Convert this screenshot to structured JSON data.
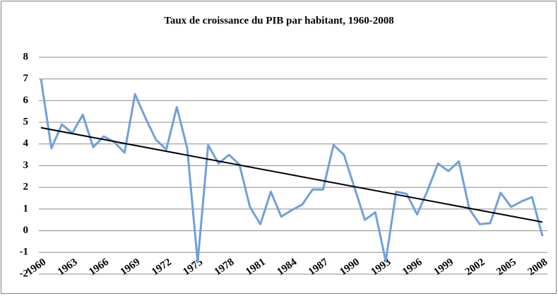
{
  "chart_data": {
    "type": "line",
    "title": "Taux de croissance du PIB par habitant, 1960-2008",
    "categories": [
      "1960",
      null,
      null,
      "1963",
      null,
      null,
      "1966",
      null,
      null,
      "1969",
      null,
      null,
      "1972",
      null,
      null,
      "1975",
      null,
      null,
      "1978",
      null,
      null,
      "1981",
      null,
      null,
      "1984",
      null,
      null,
      "1987",
      null,
      null,
      "1990",
      null,
      null,
      "1993",
      null,
      null,
      "1996",
      null,
      null,
      "1999",
      null,
      null,
      "2002",
      null,
      null,
      "2005",
      null,
      null,
      "2008"
    ],
    "series": [
      {
        "color": "#6fa0dc",
        "values": [
          7.0,
          3.8,
          4.9,
          4.5,
          5.35,
          3.85,
          4.35,
          4.1,
          3.6,
          6.3,
          5.2,
          4.2,
          3.75,
          5.7,
          3.8,
          -1.45,
          3.95,
          3.1,
          3.5,
          3.05,
          1.1,
          0.3,
          1.8,
          0.65,
          0.95,
          1.2,
          1.9,
          1.9,
          3.95,
          3.5,
          2.0,
          0.5,
          0.85,
          -1.4,
          1.8,
          1.7,
          0.75,
          1.85,
          3.1,
          2.75,
          3.2,
          1.0,
          0.3,
          0.35,
          1.75,
          1.1,
          1.35,
          1.55,
          -0.25
        ]
      }
    ],
    "trendline": {
      "color": "#000000",
      "values": [
        4.75,
        0.4
      ]
    },
    "ylim": [
      -2,
      8
    ],
    "yticks": [
      -2,
      -1,
      0,
      1,
      2,
      3,
      4,
      5,
      6,
      7,
      8
    ],
    "grid": true
  }
}
